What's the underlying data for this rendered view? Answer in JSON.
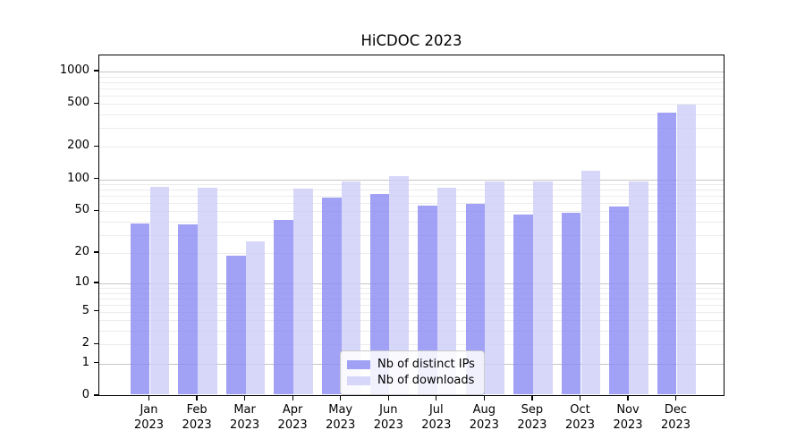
{
  "chart_data": {
    "type": "bar",
    "title": "HiCDOC 2023",
    "categories": [
      "Jan",
      "Feb",
      "Mar",
      "Apr",
      "May",
      "Jun",
      "Jul",
      "Aug",
      "Sep",
      "Oct",
      "Nov",
      "Dec"
    ],
    "category_year": "2023",
    "series": [
      {
        "name": "Nb of distinct IPs",
        "color": "#9c9cee",
        "fill": "rgba(138,138,242,0.8)",
        "values": [
          37,
          36,
          18,
          40,
          65,
          70,
          55,
          57,
          45,
          47,
          53,
          400
        ]
      },
      {
        "name": "Nb of downloads",
        "color": "#d9d9f9",
        "fill": "rgba(205,205,248,0.8)",
        "values": [
          82,
          80,
          25,
          78,
          92,
          102,
          80,
          92,
          91,
          116,
          92,
          475
        ]
      }
    ],
    "yscale": "log1p",
    "ylim": [
      0,
      1450
    ],
    "ytick_labels": [
      1000,
      500,
      200,
      100,
      50,
      20,
      10,
      5,
      2,
      1,
      0
    ],
    "grid": "major and minor horizontal gridlines",
    "legend_position": "lower center",
    "colors": {
      "major_grid": "#c6c6c6",
      "minor_grid": "#ececec",
      "axis": "#000000",
      "background": "#ffffff"
    }
  }
}
